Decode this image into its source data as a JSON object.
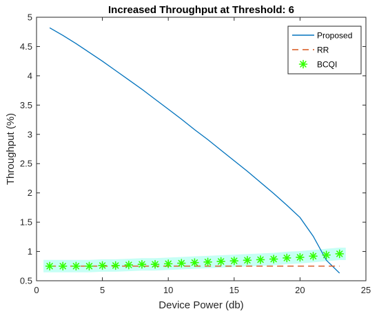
{
  "chart_data": {
    "type": "line",
    "title": "Increased Throughput at Threshold: 6",
    "xlabel": "Device Power (db)",
    "ylabel": "Throughput (%)",
    "xlim": [
      0,
      25
    ],
    "ylim": [
      0.5,
      5
    ],
    "xticks": [
      0,
      5,
      10,
      15,
      20,
      25
    ],
    "yticks": [
      0.5,
      1,
      1.5,
      2,
      2.5,
      3,
      3.5,
      4,
      4.5,
      5
    ],
    "xtick_labels": [
      "0",
      "5",
      "10",
      "15",
      "20",
      "25"
    ],
    "ytick_labels": [
      "0.5",
      "1",
      "1.5",
      "2",
      "2.5",
      "3",
      "3.5",
      "4",
      "4.5",
      "5"
    ],
    "grid": false,
    "legend_position": "top-right",
    "series": [
      {
        "name": "Proposed",
        "style": "solid-line",
        "color": "#0072BD",
        "x": [
          1,
          2,
          3,
          4,
          5,
          6,
          7,
          8,
          9,
          10,
          11,
          12,
          13,
          14,
          15,
          16,
          17,
          18,
          19,
          20,
          21,
          22,
          23
        ],
        "y": [
          4.82,
          4.69,
          4.55,
          4.4,
          4.25,
          4.09,
          3.93,
          3.77,
          3.6,
          3.43,
          3.26,
          3.08,
          2.91,
          2.73,
          2.55,
          2.37,
          2.18,
          1.99,
          1.79,
          1.58,
          1.26,
          0.85,
          0.63
        ]
      },
      {
        "name": "RR",
        "style": "dashed-line",
        "color": "#D95319",
        "x": [
          1,
          2,
          3,
          4,
          5,
          6,
          7,
          8,
          9,
          10,
          11,
          12,
          13,
          14,
          15,
          16,
          17,
          18,
          19,
          20,
          21,
          22,
          23
        ],
        "y": [
          0.75,
          0.75,
          0.75,
          0.75,
          0.75,
          0.75,
          0.75,
          0.75,
          0.75,
          0.75,
          0.75,
          0.75,
          0.75,
          0.75,
          0.75,
          0.75,
          0.75,
          0.75,
          0.75,
          0.75,
          0.75,
          0.75,
          0.75
        ]
      },
      {
        "name": "BCQI",
        "style": "star-markers",
        "color": "#33FF00",
        "x": [
          1,
          2,
          3,
          4,
          5,
          6,
          7,
          8,
          9,
          10,
          11,
          12,
          13,
          14,
          15,
          16,
          17,
          18,
          19,
          20,
          21,
          22,
          23
        ],
        "y": [
          0.75,
          0.75,
          0.75,
          0.75,
          0.76,
          0.76,
          0.77,
          0.78,
          0.78,
          0.79,
          0.8,
          0.81,
          0.82,
          0.83,
          0.84,
          0.85,
          0.86,
          0.87,
          0.89,
          0.9,
          0.92,
          0.94,
          0.96
        ]
      }
    ]
  },
  "colors": {
    "axis": "#262626",
    "bcqi_highlight": "#C6FFF5"
  }
}
